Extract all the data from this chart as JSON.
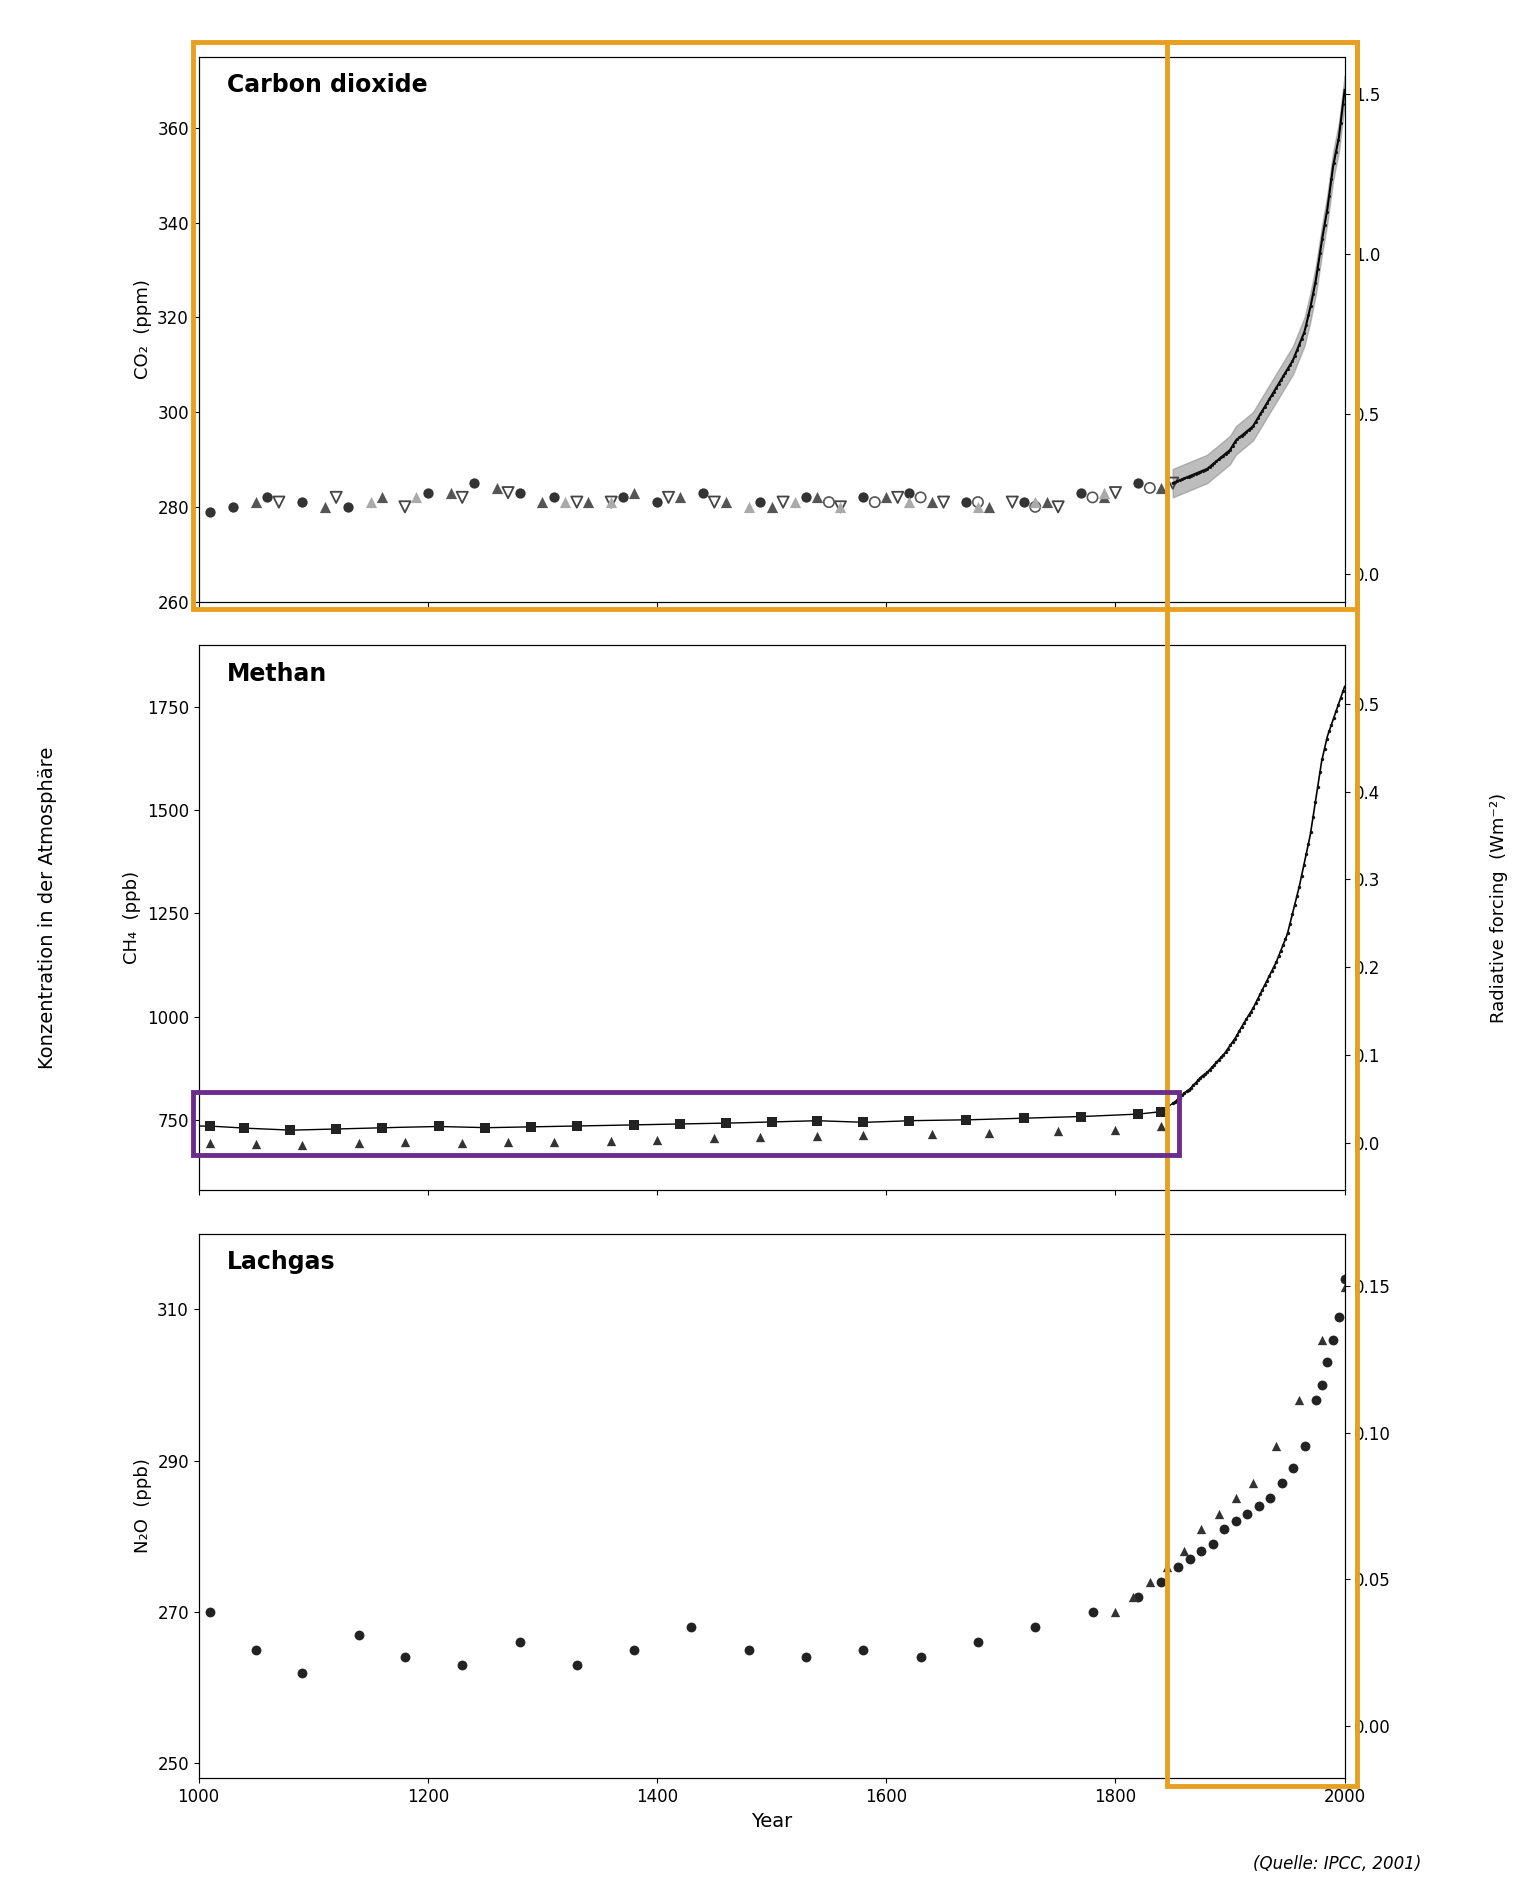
{
  "title_co2": "Carbon dioxide",
  "title_ch4": "Methan",
  "title_n2o": "Lachgas",
  "ylabel_left": "Konzentration in der Atmosphäre",
  "ylabel_right": "Radiative forcing  (Wm⁻²)",
  "xlabel": "Year",
  "source": "(Quelle: IPCC, 2001)",
  "co2_ylabel": "CO₂  (ppm)",
  "ch4_ylabel": "CH₄  (ppb)",
  "n2o_ylabel": "N₂O  (ppb)",
  "xmin": 1000,
  "xmax": 2000,
  "co2_ylim": [
    260,
    375
  ],
  "co2_yticks": [
    260,
    280,
    300,
    320,
    340,
    360
  ],
  "co2_rf_ylim": [
    -0.085,
    1.615
  ],
  "co2_rf_yticks": [
    0.0,
    0.5,
    1.0,
    1.5
  ],
  "ch4_ylim": [
    580,
    1900
  ],
  "ch4_yticks": [
    750,
    1000,
    1250,
    1500,
    1750
  ],
  "ch4_rf_ylim": [
    -0.054,
    0.567
  ],
  "ch4_rf_yticks": [
    0.0,
    0.1,
    0.2,
    0.3,
    0.4,
    0.5
  ],
  "n2o_ylim": [
    248,
    320
  ],
  "n2o_yticks": [
    250,
    270,
    290,
    310
  ],
  "n2o_rf_ylim": [
    -0.018,
    0.168
  ],
  "n2o_rf_yticks": [
    0.0,
    0.05,
    0.1,
    0.15
  ],
  "orange_box_color": "#E8A020",
  "purple_box_color": "#6B2D8B",
  "co2_circles_x": [
    1010,
    1030,
    1060,
    1090,
    1130,
    1200,
    1240,
    1280,
    1310,
    1370,
    1400,
    1440,
    1490,
    1530,
    1580,
    1620,
    1670,
    1720,
    1770,
    1820
  ],
  "co2_circles_y": [
    279,
    280,
    282,
    281,
    280,
    283,
    285,
    283,
    282,
    282,
    281,
    283,
    281,
    282,
    282,
    283,
    281,
    281,
    283,
    285
  ],
  "co2_tri_up_x": [
    1050,
    1110,
    1160,
    1220,
    1260,
    1300,
    1340,
    1380,
    1420,
    1460,
    1500,
    1540,
    1600,
    1640,
    1690,
    1740,
    1790,
    1840
  ],
  "co2_tri_up_y": [
    281,
    280,
    282,
    283,
    284,
    281,
    281,
    283,
    282,
    281,
    280,
    282,
    282,
    281,
    280,
    281,
    282,
    284
  ],
  "co2_tri_down_x": [
    1070,
    1120,
    1180,
    1230,
    1270,
    1330,
    1360,
    1410,
    1450,
    1510,
    1560,
    1610,
    1650,
    1710,
    1750,
    1800,
    1850
  ],
  "co2_tri_down_y": [
    281,
    282,
    280,
    282,
    283,
    281,
    281,
    282,
    281,
    281,
    280,
    282,
    281,
    281,
    280,
    283,
    285
  ],
  "co2_open_circles_x": [
    1550,
    1590,
    1630,
    1680,
    1730,
    1780,
    1830
  ],
  "co2_open_circles_y": [
    281,
    281,
    282,
    281,
    280,
    282,
    284
  ],
  "co2_gray_tri_x": [
    1150,
    1190,
    1320,
    1360,
    1480,
    1520,
    1560,
    1620,
    1680,
    1730,
    1790
  ],
  "co2_gray_tri_y": [
    281,
    282,
    281,
    281,
    280,
    281,
    280,
    281,
    280,
    281,
    283
  ],
  "co2_modern_x": [
    1850,
    1855,
    1860,
    1865,
    1870,
    1875,
    1880,
    1885,
    1890,
    1895,
    1900,
    1905,
    1910,
    1915,
    1920,
    1925,
    1930,
    1935,
    1940,
    1945,
    1950,
    1955,
    1960,
    1965,
    1970,
    1975,
    1980,
    1985,
    1990,
    1995,
    2000
  ],
  "co2_modern_y": [
    285,
    285.5,
    286,
    286.5,
    287,
    287.5,
    288,
    289,
    290,
    291,
    292,
    294,
    295,
    296,
    297,
    299,
    301,
    303,
    305,
    307,
    309,
    311,
    314,
    317,
    322,
    328,
    336,
    343,
    352,
    358,
    368
  ],
  "ch4_squares_x": [
    1010,
    1040,
    1080,
    1120,
    1160,
    1210,
    1250,
    1290,
    1330,
    1380,
    1420,
    1460,
    1500,
    1540,
    1580,
    1620,
    1670,
    1720,
    1770,
    1820,
    1840
  ],
  "ch4_squares_y": [
    735,
    730,
    725,
    728,
    731,
    734,
    731,
    733,
    735,
    738,
    740,
    742,
    745,
    748,
    744,
    748,
    750,
    754,
    758,
    764,
    770
  ],
  "ch4_tri_x": [
    1010,
    1050,
    1090,
    1140,
    1180,
    1230,
    1270,
    1310,
    1360,
    1400,
    1450,
    1490,
    1540,
    1580,
    1640,
    1690,
    1750,
    1800,
    1840
  ],
  "ch4_tri_y": [
    695,
    692,
    690,
    694,
    697,
    694,
    696,
    697,
    700,
    702,
    706,
    708,
    710,
    713,
    715,
    718,
    722,
    726,
    734
  ],
  "ch4_modern_x": [
    1850,
    1855,
    1860,
    1865,
    1870,
    1875,
    1880,
    1885,
    1890,
    1895,
    1900,
    1905,
    1910,
    1920,
    1930,
    1940,
    1950,
    1960,
    1970,
    1975,
    1980,
    1985,
    1990,
    1995,
    2000
  ],
  "ch4_modern_y": [
    790,
    800,
    815,
    825,
    840,
    855,
    865,
    880,
    895,
    910,
    930,
    950,
    975,
    1020,
    1075,
    1130,
    1200,
    1310,
    1440,
    1530,
    1620,
    1680,
    1720,
    1760,
    1800
  ],
  "n2o_circles_x": [
    1010,
    1050,
    1090,
    1140,
    1180,
    1230,
    1280,
    1330,
    1380,
    1430,
    1480,
    1530,
    1580,
    1630,
    1680,
    1730,
    1780,
    1820,
    1840,
    1855,
    1865,
    1875,
    1885,
    1895,
    1905,
    1915,
    1925,
    1935,
    1945,
    1955,
    1965,
    1975,
    1980,
    1985,
    1990,
    1995,
    2000
  ],
  "n2o_circles_y": [
    270,
    265,
    262,
    267,
    264,
    263,
    266,
    263,
    265,
    268,
    265,
    264,
    265,
    264,
    266,
    268,
    270,
    272,
    274,
    276,
    277,
    278,
    279,
    281,
    282,
    283,
    284,
    285,
    287,
    289,
    292,
    298,
    300,
    303,
    306,
    309,
    314
  ],
  "n2o_tri_x": [
    1800,
    1815,
    1830,
    1845,
    1860,
    1875,
    1890,
    1905,
    1920,
    1940,
    1960,
    1980,
    2000
  ],
  "n2o_tri_y": [
    270,
    272,
    274,
    276,
    278,
    281,
    283,
    285,
    287,
    292,
    298,
    306,
    313
  ]
}
